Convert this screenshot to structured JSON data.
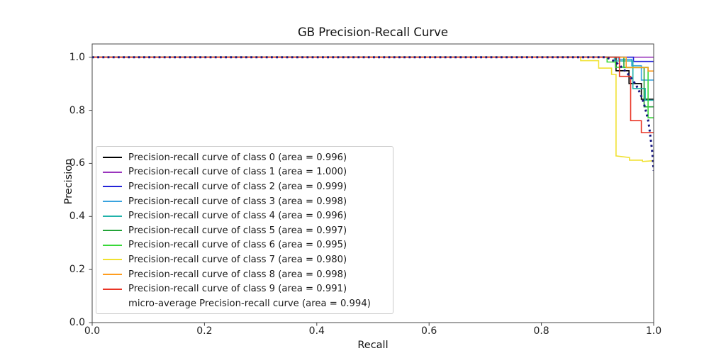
{
  "figure": {
    "title": "GB Precision-Recall Curve",
    "xlabel": "Recall",
    "ylabel": "Precision"
  },
  "colors": {
    "spine": "#4a4a4a",
    "tick": "#444444",
    "micro_navy": "#151580"
  },
  "chart_data": {
    "type": "line",
    "title": "GB Precision-Recall Curve",
    "xlabel": "Recall",
    "ylabel": "Precision",
    "xlim": [
      0.0,
      1.0
    ],
    "ylim": [
      0.0,
      1.05
    ],
    "x_ticks": [
      "0.0",
      "0.2",
      "0.4",
      "0.6",
      "0.8",
      "1.0"
    ],
    "y_ticks": [
      "0.0",
      "0.2",
      "0.4",
      "0.6",
      "0.8",
      "1.0"
    ],
    "grid": false,
    "legend_position": "center left",
    "series": [
      {
        "name": "class-0",
        "legend_label": "Precision-recall curve of class 0 (area = 0.996)",
        "area": 0.996,
        "color": "#000000",
        "style": "solid",
        "points": [
          [
            0,
            1
          ],
          [
            0.933,
            1
          ],
          [
            0.933,
            0.949
          ],
          [
            0.956,
            0.949
          ],
          [
            0.956,
            0.901
          ],
          [
            0.978,
            0.901
          ],
          [
            0.978,
            0.842
          ],
          [
            1,
            0.842
          ]
        ]
      },
      {
        "name": "class-1",
        "legend_label": "Precision-recall curve of class 1 (area = 1.000)",
        "area": 1.0,
        "color": "#9a35bd",
        "style": "solid",
        "points": [
          [
            0,
            1
          ],
          [
            1,
            1
          ]
        ]
      },
      {
        "name": "class-2",
        "legend_label": "Precision-recall curve of class 2 (area = 0.999)",
        "area": 0.999,
        "color": "#2424d8",
        "style": "solid",
        "points": [
          [
            0,
            1
          ],
          [
            0.964,
            1
          ],
          [
            0.964,
            0.984
          ],
          [
            1,
            0.984
          ]
        ]
      },
      {
        "name": "class-3",
        "legend_label": "Precision-recall curve of class 3 (area = 0.998)",
        "area": 0.998,
        "color": "#3aa3df",
        "style": "solid",
        "points": [
          [
            0,
            1
          ],
          [
            0.937,
            1
          ],
          [
            0.937,
            0.992
          ],
          [
            0.961,
            0.992
          ],
          [
            0.961,
            0.968
          ],
          [
            0.978,
            0.968
          ],
          [
            0.978,
            0.914
          ],
          [
            1,
            0.914
          ]
        ]
      },
      {
        "name": "class-4",
        "legend_label": "Precision-recall curve of class 4 (area = 0.996)",
        "area": 0.996,
        "color": "#20b2aa",
        "style": "solid",
        "points": [
          [
            0,
            1
          ],
          [
            0.93,
            1
          ],
          [
            0.93,
            0.986
          ],
          [
            0.963,
            0.986
          ],
          [
            0.963,
            0.882
          ],
          [
            0.985,
            0.882
          ],
          [
            0.985,
            0.838
          ],
          [
            1,
            0.838
          ]
        ]
      },
      {
        "name": "class-5",
        "legend_label": "Precision-recall curve of class 5 (area = 0.997)",
        "area": 0.997,
        "color": "#23a338",
        "style": "solid",
        "points": [
          [
            0,
            1
          ],
          [
            0.947,
            1
          ],
          [
            0.947,
            0.961
          ],
          [
            0.983,
            0.961
          ],
          [
            0.983,
            0.813
          ],
          [
            1,
            0.813
          ]
        ]
      },
      {
        "name": "class-6",
        "legend_label": "Precision-recall curve of class 6 (area = 0.995)",
        "area": 0.995,
        "color": "#39d839",
        "style": "solid",
        "points": [
          [
            0,
            1
          ],
          [
            0.917,
            1
          ],
          [
            0.917,
            0.982
          ],
          [
            0.932,
            0.982
          ],
          [
            0.932,
            0.962
          ],
          [
            0.99,
            0.962
          ],
          [
            0.99,
            0.772
          ],
          [
            1,
            0.772
          ]
        ]
      },
      {
        "name": "class-7",
        "legend_label": "Precision-recall curve of class 7 (area = 0.980)",
        "area": 0.98,
        "color": "#f0e130",
        "style": "solid",
        "points": [
          [
            0,
            1
          ],
          [
            0.87,
            1
          ],
          [
            0.87,
            0.987
          ],
          [
            0.902,
            0.987
          ],
          [
            0.902,
            0.959
          ],
          [
            0.925,
            0.959
          ],
          [
            0.925,
            0.935
          ],
          [
            0.933,
            0.935
          ],
          [
            0.933,
            0.628
          ],
          [
            0.957,
            0.622
          ],
          [
            0.957,
            0.612
          ],
          [
            0.98,
            0.612
          ],
          [
            0.98,
            0.607
          ],
          [
            1,
            0.61
          ]
        ]
      },
      {
        "name": "class-8",
        "legend_label": "Precision-recall curve of class 8 (area = 0.998)",
        "area": 0.998,
        "color": "#ff9d1e",
        "style": "solid",
        "points": [
          [
            0,
            1
          ],
          [
            0.951,
            1
          ],
          [
            0.951,
            0.961
          ],
          [
            0.99,
            0.961
          ],
          [
            0.99,
            0.948
          ],
          [
            1,
            0.948
          ]
        ]
      },
      {
        "name": "class-9",
        "legend_label": "Precision-recall curve of class 9 (area = 0.991)",
        "area": 0.991,
        "color": "#e93425",
        "style": "solid",
        "points": [
          [
            0,
            1
          ],
          [
            0.939,
            1
          ],
          [
            0.939,
            0.928
          ],
          [
            0.959,
            0.928
          ],
          [
            0.959,
            0.761
          ],
          [
            0.978,
            0.761
          ],
          [
            0.978,
            0.716
          ],
          [
            1,
            0.716
          ]
        ]
      },
      {
        "name": "micro-average",
        "legend_label": "micro-average Precision-recall curve (area = 0.994)",
        "area": 0.994,
        "color": "#151580",
        "style": "dotted",
        "points": [
          [
            0,
            1
          ],
          [
            0.915,
            1
          ],
          [
            0.922,
            0.994
          ],
          [
            0.928,
            0.987
          ],
          [
            0.934,
            0.979
          ],
          [
            0.94,
            0.968
          ],
          [
            0.946,
            0.956
          ],
          [
            0.952,
            0.942
          ],
          [
            0.958,
            0.927
          ],
          [
            0.964,
            0.91
          ],
          [
            0.97,
            0.89
          ],
          [
            0.975,
            0.868
          ],
          [
            0.98,
            0.843
          ],
          [
            0.984,
            0.815
          ],
          [
            0.987,
            0.79
          ],
          [
            0.99,
            0.763
          ],
          [
            0.992,
            0.737
          ],
          [
            0.994,
            0.705
          ],
          [
            0.996,
            0.67
          ],
          [
            0.998,
            0.63
          ],
          [
            0.999,
            0.6
          ],
          [
            1,
            0.572
          ]
        ]
      }
    ]
  }
}
